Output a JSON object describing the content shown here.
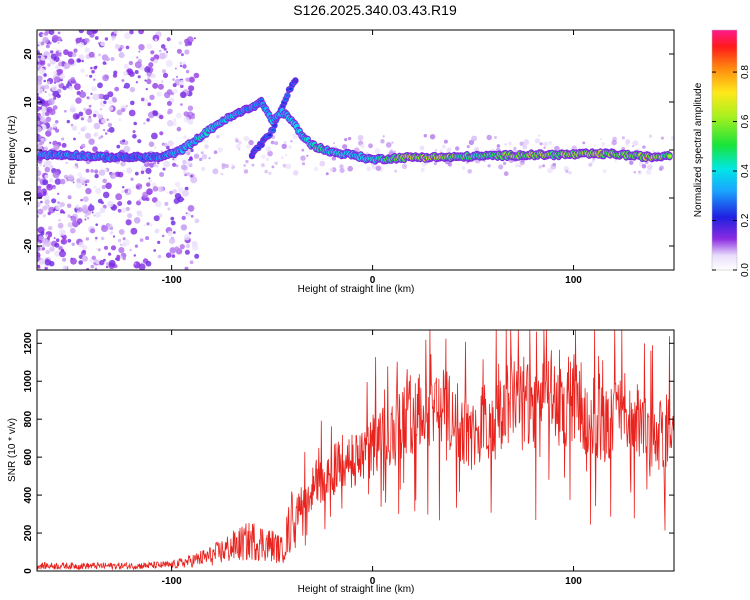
{
  "title": "S126.2025.340.03.43.R19",
  "chart_data": [
    {
      "type": "heatmap",
      "title": "S126.2025.340.03.43.R19",
      "xlabel": "Height of straight line (km)",
      "ylabel": "Frequency (Hz)",
      "xlim": [
        -167,
        150
      ],
      "ylim": [
        -25,
        25
      ],
      "xticks": [
        -100,
        0,
        100
      ],
      "yticks": [
        -20,
        -10,
        0,
        10,
        20
      ],
      "colorbar": {
        "label": "Normalized spectral amplitude",
        "range": [
          0,
          0.97
        ],
        "ticks": [
          0.0,
          0.2,
          0.4,
          0.6,
          0.8
        ]
      },
      "ridge": [
        {
          "x": -165,
          "f": -1,
          "amp": 0.3
        },
        {
          "x": -150,
          "f": -1,
          "amp": 0.3
        },
        {
          "x": -135,
          "f": -1.5,
          "amp": 0.3
        },
        {
          "x": -120,
          "f": -1.5,
          "amp": 0.28
        },
        {
          "x": -105,
          "f": -1.5,
          "amp": 0.3
        },
        {
          "x": -95,
          "f": 0,
          "amp": 0.35
        },
        {
          "x": -85,
          "f": 3,
          "amp": 0.45
        },
        {
          "x": -75,
          "f": 6,
          "amp": 0.45
        },
        {
          "x": -65,
          "f": 8,
          "amp": 0.35
        },
        {
          "x": -55,
          "f": 10,
          "amp": 0.3
        },
        {
          "x": -50,
          "f": 6,
          "amp": 0.4
        },
        {
          "x": -45,
          "f": 8,
          "amp": 0.35
        },
        {
          "x": -40,
          "f": 6,
          "amp": 0.45
        },
        {
          "x": -35,
          "f": 3,
          "amp": 0.4
        },
        {
          "x": -30,
          "f": 1,
          "amp": 0.5
        },
        {
          "x": -20,
          "f": -0.5,
          "amp": 0.45
        },
        {
          "x": -10,
          "f": -1,
          "amp": 0.45
        },
        {
          "x": 0,
          "f": -2,
          "amp": 0.45
        },
        {
          "x": 10,
          "f": -1.7,
          "amp": 0.6
        },
        {
          "x": 20,
          "f": -1.5,
          "amp": 0.8
        },
        {
          "x": 30,
          "f": -1.5,
          "amp": 0.85
        },
        {
          "x": 40,
          "f": -1.5,
          "amp": 0.7
        },
        {
          "x": 50,
          "f": -1.3,
          "amp": 0.55
        },
        {
          "x": 60,
          "f": -1.2,
          "amp": 0.6
        },
        {
          "x": 70,
          "f": -1.1,
          "amp": 0.7
        },
        {
          "x": 80,
          "f": -1,
          "amp": 0.8
        },
        {
          "x": 90,
          "f": -1,
          "amp": 0.7
        },
        {
          "x": 100,
          "f": -0.9,
          "amp": 0.75
        },
        {
          "x": 110,
          "f": -0.8,
          "amp": 0.85
        },
        {
          "x": 120,
          "f": -0.8,
          "amp": 0.7
        },
        {
          "x": 130,
          "f": -1.2,
          "amp": 0.7
        },
        {
          "x": 140,
          "f": -1.5,
          "amp": 0.8
        },
        {
          "x": 148,
          "f": -1,
          "amp": 0.6
        }
      ],
      "secondary_ridge": [
        {
          "x": -60,
          "f": -1,
          "amp": 0.2
        },
        {
          "x": -50,
          "f": 4,
          "amp": 0.25
        },
        {
          "x": -42,
          "f": 12,
          "amp": 0.25
        },
        {
          "x": -38,
          "f": 15,
          "amp": 0.2
        }
      ]
    },
    {
      "type": "line",
      "xlabel": "Height of straight line (km)",
      "ylabel": "SNR (10 * v/v)",
      "xlim": [
        -167,
        150
      ],
      "ylim": [
        0,
        1270
      ],
      "xticks": [
        -100,
        0,
        100
      ],
      "yticks": [
        0,
        200,
        400,
        600,
        800,
        1000,
        1200
      ],
      "color": "#e8231e",
      "envelope": {
        "x": [
          -167,
          -140,
          -120,
          -100,
          -90,
          -80,
          -70,
          -60,
          -50,
          -45,
          -40,
          -35,
          -30,
          -25,
          -20,
          -15,
          -10,
          -5,
          0,
          5,
          10,
          15,
          20,
          25,
          30,
          35,
          40,
          45,
          50,
          55,
          60,
          65,
          70,
          75,
          80,
          85,
          90,
          95,
          100,
          105,
          110,
          115,
          120,
          125,
          130,
          135,
          140,
          145,
          150
        ],
        "y": [
          30,
          30,
          30,
          35,
          60,
          90,
          140,
          180,
          150,
          120,
          300,
          420,
          500,
          550,
          600,
          650,
          650,
          700,
          750,
          800,
          850,
          900,
          950,
          1000,
          1050,
          980,
          950,
          850,
          800,
          900,
          850,
          950,
          1100,
          1050,
          950,
          1150,
          1050,
          900,
          1050,
          950,
          920,
          880,
          900,
          1000,
          850,
          900,
          800,
          820,
          950
        ]
      }
    }
  ]
}
